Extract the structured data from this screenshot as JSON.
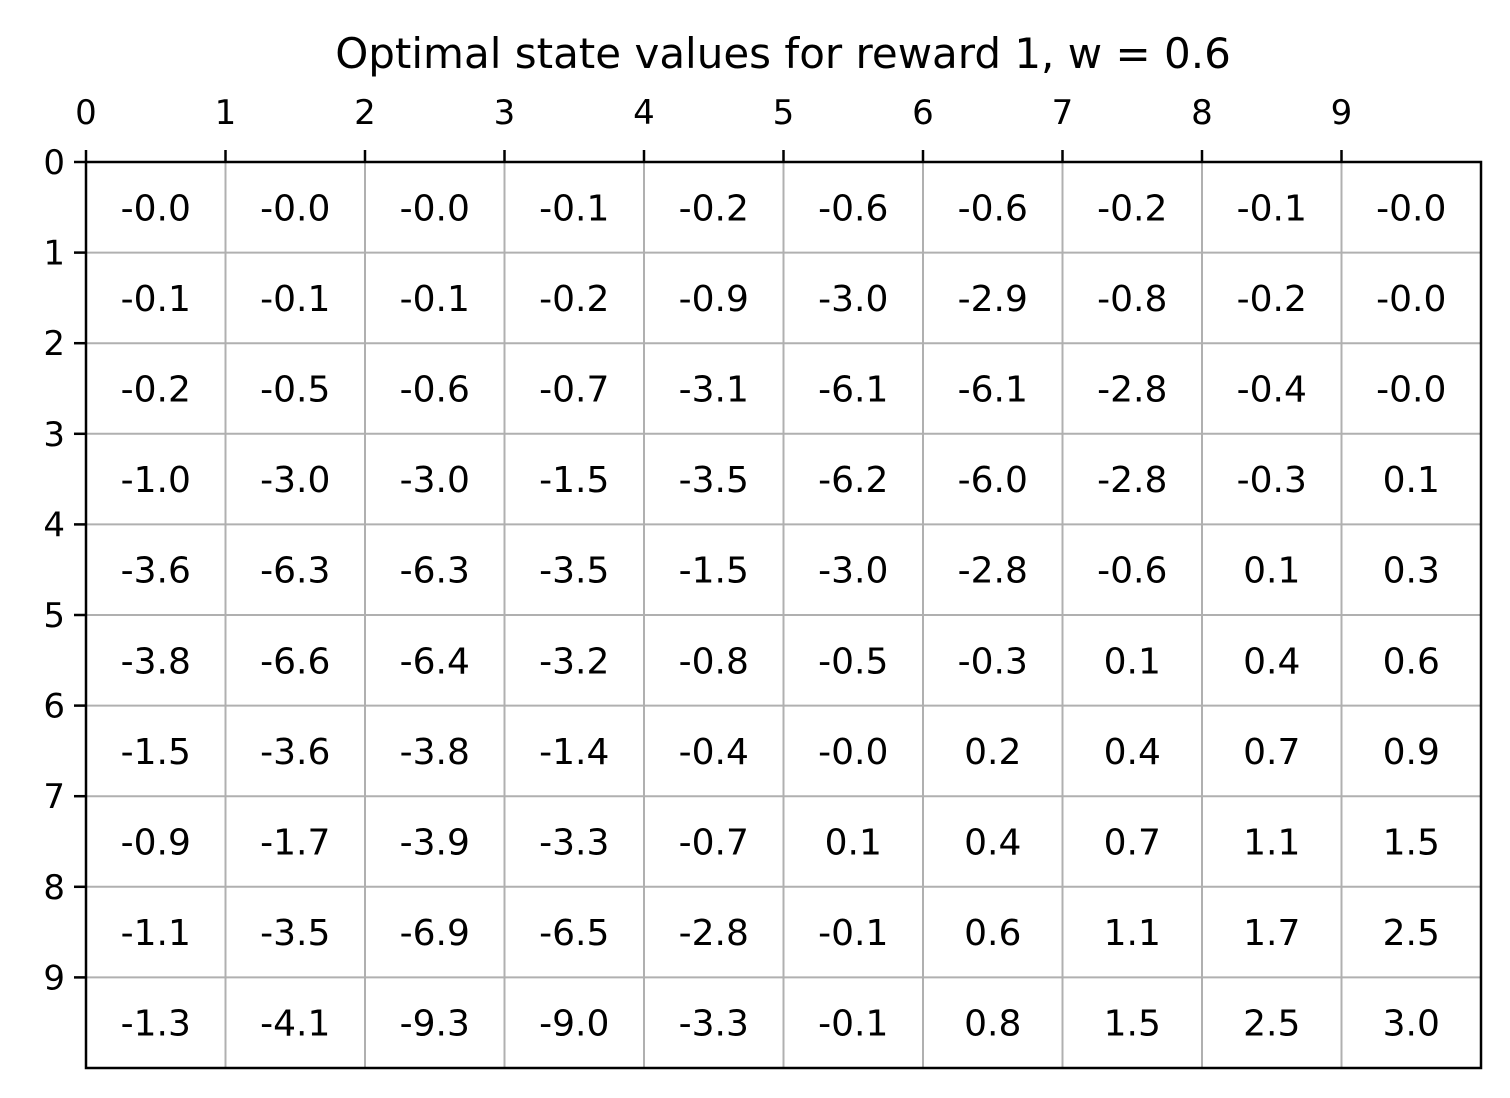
{
  "chart_data": {
    "type": "table",
    "title": "Optimal state values for reward 1, w = 0.6",
    "x_ticks": [
      "0",
      "1",
      "2",
      "3",
      "4",
      "5",
      "6",
      "7",
      "8",
      "9"
    ],
    "y_ticks": [
      "0",
      "1",
      "2",
      "3",
      "4",
      "5",
      "6",
      "7",
      "8",
      "9"
    ],
    "xlim": [
      0,
      10
    ],
    "ylim": [
      0,
      10
    ],
    "x_axis_position": "top",
    "grid": true,
    "grid_color": "#b0b0b0",
    "values": [
      [
        "-0.0",
        "-0.0",
        "-0.0",
        "-0.1",
        "-0.2",
        "-0.6",
        "-0.6",
        "-0.2",
        "-0.1",
        "-0.0"
      ],
      [
        "-0.1",
        "-0.1",
        "-0.1",
        "-0.2",
        "-0.9",
        "-3.0",
        "-2.9",
        "-0.8",
        "-0.2",
        "-0.0"
      ],
      [
        "-0.2",
        "-0.5",
        "-0.6",
        "-0.7",
        "-3.1",
        "-6.1",
        "-6.1",
        "-2.8",
        "-0.4",
        "-0.0"
      ],
      [
        "-1.0",
        "-3.0",
        "-3.0",
        "-1.5",
        "-3.5",
        "-6.2",
        "-6.0",
        "-2.8",
        "-0.3",
        "0.1"
      ],
      [
        "-3.6",
        "-6.3",
        "-6.3",
        "-3.5",
        "-1.5",
        "-3.0",
        "-2.8",
        "-0.6",
        "0.1",
        "0.3"
      ],
      [
        "-3.8",
        "-6.6",
        "-6.4",
        "-3.2",
        "-0.8",
        "-0.5",
        "-0.3",
        "0.1",
        "0.4",
        "0.6"
      ],
      [
        "-1.5",
        "-3.6",
        "-3.8",
        "-1.4",
        "-0.4",
        "-0.0",
        "0.2",
        "0.4",
        "0.7",
        "0.9"
      ],
      [
        "-0.9",
        "-1.7",
        "-3.9",
        "-3.3",
        "-0.7",
        "0.1",
        "0.4",
        "0.7",
        "1.1",
        "1.5"
      ],
      [
        "-1.1",
        "-3.5",
        "-6.9",
        "-6.5",
        "-2.8",
        "-0.1",
        "0.6",
        "1.1",
        "1.7",
        "2.5"
      ],
      [
        "-1.3",
        "-4.1",
        "-9.3",
        "-9.0",
        "-3.3",
        "-0.1",
        "0.8",
        "1.5",
        "2.5",
        "3.0"
      ]
    ]
  }
}
